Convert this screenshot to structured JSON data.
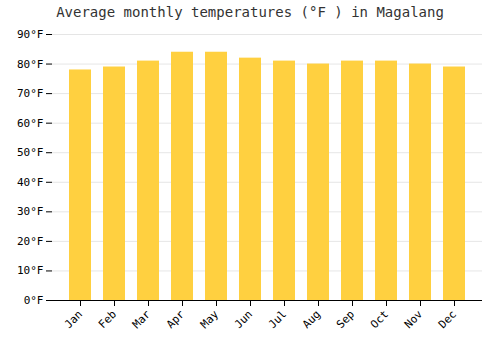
{
  "chart_data": {
    "type": "bar",
    "title": "Average monthly temperatures (°F ) in Magalang",
    "categories": [
      "Jan",
      "Feb",
      "Mar",
      "Apr",
      "May",
      "Jun",
      "Jul",
      "Aug",
      "Sep",
      "Oct",
      "Nov",
      "Dec"
    ],
    "values": [
      78,
      79,
      81,
      84,
      84,
      82,
      81,
      80,
      81,
      81,
      80,
      79
    ],
    "color": "#FFD040",
    "ylim": [
      0,
      90
    ],
    "yticks": [
      {
        "value": 0,
        "label": "0°F"
      },
      {
        "value": 10,
        "label": "10°F"
      },
      {
        "value": 20,
        "label": "20°F"
      },
      {
        "value": 30,
        "label": "30°F"
      },
      {
        "value": 40,
        "label": "40°F"
      },
      {
        "value": 50,
        "label": "50°F"
      },
      {
        "value": 60,
        "label": "60°F"
      },
      {
        "value": 70,
        "label": "70°F"
      },
      {
        "value": 80,
        "label": "80°F"
      },
      {
        "value": 90,
        "label": "90°F"
      }
    ],
    "grid": true
  }
}
